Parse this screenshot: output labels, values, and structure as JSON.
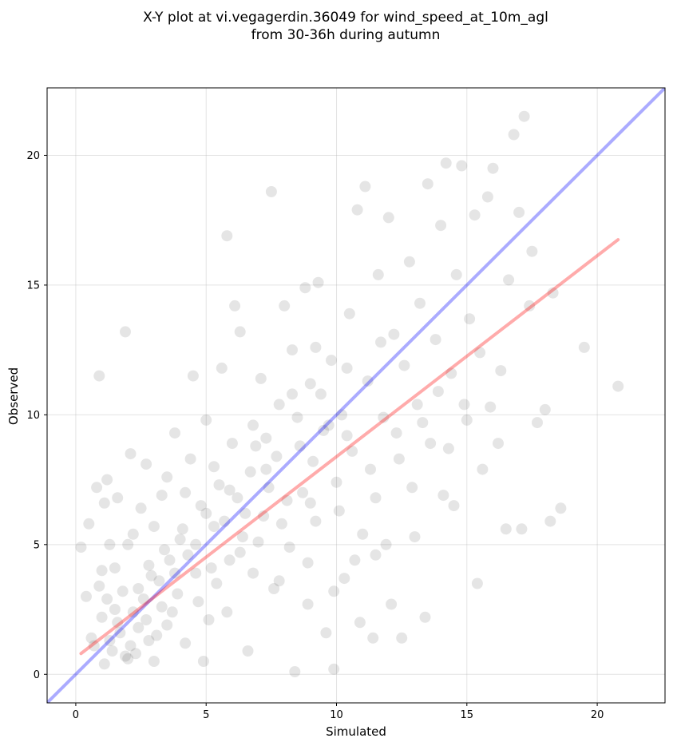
{
  "chart_data": {
    "type": "scatter",
    "title": "X-Y plot at vi.vegagerdin.36049 for wind_speed_at_10m_agl",
    "subtitle": "from 30-36h during autumn",
    "xlabel": "Simulated",
    "ylabel": "Observed",
    "xlim": [
      -1.1,
      22.6
    ],
    "ylim": [
      -1.1,
      22.6
    ],
    "xticks": [
      "0",
      "5",
      "10",
      "15",
      "20"
    ],
    "yticks": [
      "0",
      "5",
      "10",
      "15",
      "20"
    ],
    "grid": true,
    "point_color": "#000000",
    "point_opacity": 0.1,
    "identity_line": {
      "color": "#0000ff",
      "opacity": 0.33,
      "x": [
        -1.1,
        22.6
      ],
      "y": [
        -1.1,
        22.6
      ]
    },
    "fit_line": {
      "color": "#ff0000",
      "opacity": 0.33,
      "x": [
        0.2,
        20.8
      ],
      "y": [
        0.8,
        16.75
      ]
    },
    "points": [
      [
        0.2,
        4.9
      ],
      [
        0.4,
        3.0
      ],
      [
        0.5,
        5.8
      ],
      [
        0.6,
        1.4
      ],
      [
        0.8,
        7.2
      ],
      [
        0.9,
        11.5
      ],
      [
        1.0,
        4.0
      ],
      [
        1.1,
        6.6
      ],
      [
        1.2,
        7.5
      ],
      [
        1.3,
        5.0
      ],
      [
        1.5,
        2.5
      ],
      [
        1.6,
        6.8
      ],
      [
        1.8,
        3.2
      ],
      [
        1.9,
        13.2
      ],
      [
        2.0,
        0.6
      ],
      [
        2.1,
        8.5
      ],
      [
        2.2,
        5.4
      ],
      [
        2.4,
        1.8
      ],
      [
        2.5,
        6.4
      ],
      [
        2.7,
        8.1
      ],
      [
        2.8,
        4.2
      ],
      [
        3.0,
        0.5
      ],
      [
        3.2,
        3.6
      ],
      [
        3.3,
        6.9
      ],
      [
        3.5,
        7.6
      ],
      [
        3.7,
        2.4
      ],
      [
        3.8,
        9.3
      ],
      [
        4.0,
        5.2
      ],
      [
        4.2,
        1.2
      ],
      [
        4.4,
        8.3
      ],
      [
        4.5,
        11.5
      ],
      [
        4.6,
        3.9
      ],
      [
        4.8,
        6.5
      ],
      [
        5.0,
        9.8
      ],
      [
        5.1,
        2.1
      ],
      [
        5.3,
        5.7
      ],
      [
        5.5,
        7.3
      ],
      [
        5.6,
        11.8
      ],
      [
        5.8,
        16.9
      ],
      [
        5.9,
        4.4
      ],
      [
        6.0,
        8.9
      ],
      [
        6.1,
        14.2
      ],
      [
        6.3,
        13.2
      ],
      [
        6.5,
        6.2
      ],
      [
        6.6,
        0.9
      ],
      [
        6.8,
        9.6
      ],
      [
        7.0,
        5.1
      ],
      [
        7.1,
        11.4
      ],
      [
        7.3,
        7.9
      ],
      [
        7.5,
        18.6
      ],
      [
        7.6,
        3.3
      ],
      [
        7.8,
        10.4
      ],
      [
        8.0,
        14.2
      ],
      [
        8.1,
        6.7
      ],
      [
        8.3,
        12.5
      ],
      [
        8.4,
        0.1
      ],
      [
        8.6,
        8.8
      ],
      [
        8.8,
        14.9
      ],
      [
        8.9,
        2.7
      ],
      [
        9.0,
        11.2
      ],
      [
        9.2,
        5.9
      ],
      [
        9.3,
        15.1
      ],
      [
        9.5,
        9.4
      ],
      [
        9.6,
        1.6
      ],
      [
        9.8,
        12.1
      ],
      [
        9.9,
        0.2
      ],
      [
        10.0,
        7.4
      ],
      [
        10.2,
        10.0
      ],
      [
        10.3,
        3.7
      ],
      [
        10.5,
        13.9
      ],
      [
        10.6,
        8.6
      ],
      [
        10.8,
        17.9
      ],
      [
        11.0,
        5.4
      ],
      [
        11.1,
        18.8
      ],
      [
        11.2,
        11.3
      ],
      [
        11.4,
        1.4
      ],
      [
        11.5,
        6.8
      ],
      [
        11.6,
        15.4
      ],
      [
        11.8,
        9.9
      ],
      [
        12.0,
        17.6
      ],
      [
        12.1,
        2.7
      ],
      [
        12.2,
        13.1
      ],
      [
        12.4,
        8.3
      ],
      [
        12.5,
        1.4
      ],
      [
        12.6,
        11.9
      ],
      [
        12.8,
        15.9
      ],
      [
        13.0,
        5.3
      ],
      [
        13.1,
        10.4
      ],
      [
        13.2,
        14.3
      ],
      [
        13.4,
        2.2
      ],
      [
        13.5,
        18.9
      ],
      [
        13.6,
        8.9
      ],
      [
        13.8,
        12.9
      ],
      [
        14.0,
        17.3
      ],
      [
        14.1,
        6.9
      ],
      [
        14.2,
        19.7
      ],
      [
        14.4,
        11.6
      ],
      [
        14.5,
        6.5
      ],
      [
        14.6,
        15.4
      ],
      [
        14.8,
        19.6
      ],
      [
        15.0,
        9.8
      ],
      [
        15.1,
        13.7
      ],
      [
        15.3,
        17.7
      ],
      [
        15.4,
        3.5
      ],
      [
        15.5,
        12.4
      ],
      [
        15.6,
        7.9
      ],
      [
        15.8,
        18.4
      ],
      [
        16.0,
        19.5
      ],
      [
        16.2,
        8.9
      ],
      [
        16.3,
        11.7
      ],
      [
        16.5,
        5.6
      ],
      [
        16.6,
        15.2
      ],
      [
        16.8,
        20.8
      ],
      [
        17.0,
        17.8
      ],
      [
        17.1,
        5.6
      ],
      [
        17.2,
        21.5
      ],
      [
        17.4,
        14.2
      ],
      [
        17.5,
        16.3
      ],
      [
        17.7,
        9.7
      ],
      [
        18.0,
        10.2
      ],
      [
        18.2,
        5.9
      ],
      [
        18.3,
        14.7
      ],
      [
        18.6,
        6.4
      ],
      [
        19.5,
        12.6
      ],
      [
        20.8,
        11.1
      ],
      [
        0.7,
        1.1
      ],
      [
        1.0,
        2.2
      ],
      [
        1.4,
        0.9
      ],
      [
        1.7,
        1.6
      ],
      [
        2.3,
        0.8
      ],
      [
        2.6,
        2.9
      ],
      [
        3.1,
        1.5
      ],
      [
        3.4,
        4.8
      ],
      [
        3.9,
        3.1
      ],
      [
        4.3,
        4.6
      ],
      [
        4.7,
        2.8
      ],
      [
        5.2,
        4.1
      ],
      [
        5.7,
        5.9
      ],
      [
        6.2,
        6.8
      ],
      [
        6.7,
        7.8
      ],
      [
        7.2,
        6.1
      ],
      [
        7.7,
        8.4
      ],
      [
        8.2,
        4.9
      ],
      [
        8.7,
        7.0
      ],
      [
        9.1,
        8.2
      ],
      [
        9.7,
        9.6
      ],
      [
        10.1,
        6.3
      ],
      [
        10.7,
        4.4
      ],
      [
        11.3,
        7.9
      ],
      [
        11.9,
        5.0
      ],
      [
        12.3,
        9.3
      ],
      [
        12.9,
        7.2
      ],
      [
        13.3,
        9.7
      ],
      [
        13.9,
        10.9
      ],
      [
        14.3,
        8.7
      ],
      [
        14.9,
        10.4
      ],
      [
        15.9,
        10.3
      ],
      [
        1.1,
        0.4
      ],
      [
        1.3,
        1.3
      ],
      [
        1.6,
        2.0
      ],
      [
        1.9,
        0.7
      ],
      [
        2.1,
        1.1
      ],
      [
        2.4,
        3.3
      ],
      [
        2.7,
        2.1
      ],
      [
        2.9,
        3.8
      ],
      [
        3.3,
        2.6
      ],
      [
        3.6,
        4.4
      ],
      [
        4.1,
        5.6
      ],
      [
        4.6,
        5.0
      ],
      [
        5.0,
        6.2
      ],
      [
        5.4,
        3.5
      ],
      [
        5.9,
        7.1
      ],
      [
        6.4,
        5.3
      ],
      [
        6.9,
        8.8
      ],
      [
        7.4,
        7.2
      ],
      [
        7.9,
        5.8
      ],
      [
        8.5,
        9.9
      ],
      [
        9.0,
        6.6
      ],
      [
        9.4,
        10.8
      ],
      [
        10.4,
        11.8
      ],
      [
        11.7,
        12.8
      ],
      [
        0.9,
        3.4
      ],
      [
        1.2,
        2.9
      ],
      [
        1.5,
        4.1
      ],
      [
        2.0,
        5.0
      ],
      [
        2.2,
        2.4
      ],
      [
        2.8,
        1.3
      ],
      [
        3.0,
        5.7
      ],
      [
        3.5,
        1.9
      ],
      [
        3.8,
        3.9
      ],
      [
        4.2,
        7.0
      ],
      [
        4.9,
        0.5
      ],
      [
        5.3,
        8.0
      ],
      [
        5.8,
        2.4
      ],
      [
        6.3,
        4.7
      ],
      [
        6.8,
        3.9
      ],
      [
        7.3,
        9.1
      ],
      [
        7.8,
        3.6
      ],
      [
        8.3,
        10.8
      ],
      [
        8.9,
        4.3
      ],
      [
        9.2,
        12.6
      ],
      [
        9.9,
        3.2
      ],
      [
        10.4,
        9.2
      ],
      [
        10.9,
        2.0
      ],
      [
        11.5,
        4.6
      ]
    ]
  }
}
